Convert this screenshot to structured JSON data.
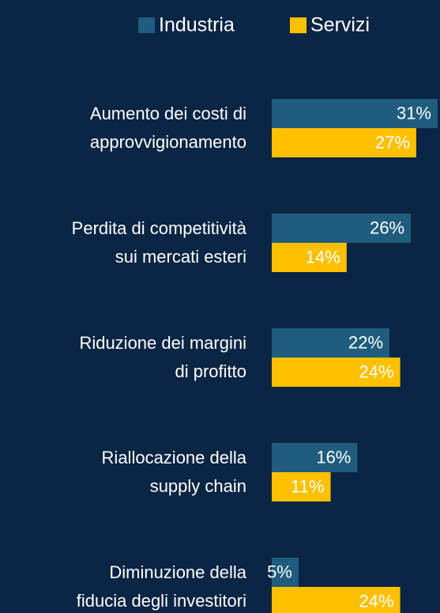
{
  "chart_data": {
    "type": "bar",
    "orientation": "horizontal",
    "categories": [
      [
        "Aumento dei costi di",
        "approvvigionamento"
      ],
      [
        "Perdita di competitività",
        "sui mercati esteri"
      ],
      [
        "Riduzione dei margini",
        "di profitto"
      ],
      [
        "Riallocazione della",
        "supply chain"
      ],
      [
        "Diminuzione della",
        "fiducia degli investitori"
      ]
    ],
    "series": [
      {
        "name": "Industria",
        "color": "#1f5c7d",
        "values": [
          31,
          26,
          22,
          16,
          5
        ],
        "value_labels": [
          "31%",
          "26%",
          "22%",
          "16%",
          "5%"
        ]
      },
      {
        "name": "Servizi",
        "color": "#ffc000",
        "values": [
          27,
          14,
          24,
          11,
          24
        ],
        "value_labels": [
          "27%",
          "14%",
          "24%",
          "11%",
          "24%"
        ]
      }
    ]
  }
}
